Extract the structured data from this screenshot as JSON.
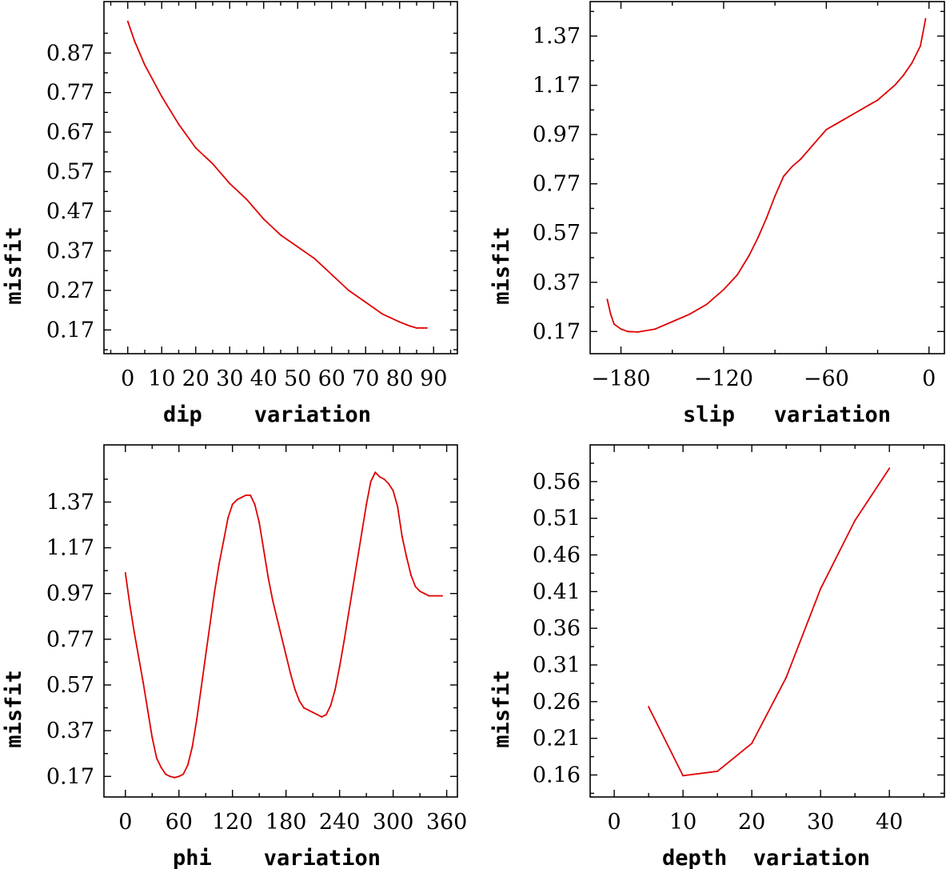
{
  "chart_data": [
    {
      "type": "line",
      "xlabel": "dip    variation",
      "ylabel": "misfit",
      "xlim": [
        -7,
        97
      ],
      "ylim": [
        0.11,
        1.0
      ],
      "xticks": [
        0,
        10,
        20,
        30,
        40,
        50,
        60,
        70,
        80,
        90
      ],
      "xtick_labels": [
        "0",
        "10",
        "20",
        "30",
        "40",
        "50",
        "60",
        "70",
        "80",
        "90"
      ],
      "yticks": [
        0.17,
        0.27,
        0.37,
        0.47,
        0.57,
        0.67,
        0.77,
        0.87
      ],
      "ytick_labels": [
        "0.17",
        "0.27",
        "0.37",
        "0.47",
        "0.57",
        "0.67",
        "0.77",
        "0.87"
      ],
      "series": [
        {
          "color": "#e00000",
          "x": [
            0,
            2,
            5,
            10,
            15,
            20,
            25,
            30,
            35,
            40,
            45,
            50,
            55,
            60,
            65,
            70,
            75,
            80,
            83,
            85,
            87,
            88
          ],
          "y": [
            0.95,
            0.9,
            0.84,
            0.76,
            0.69,
            0.63,
            0.59,
            0.54,
            0.5,
            0.45,
            0.41,
            0.38,
            0.35,
            0.31,
            0.27,
            0.24,
            0.21,
            0.19,
            0.18,
            0.175,
            0.175,
            0.175
          ]
        }
      ]
    },
    {
      "type": "line",
      "xlabel": "slip   variation",
      "ylabel": "misfit",
      "xlim": [
        -198,
        9
      ],
      "ylim": [
        0.08,
        1.51
      ],
      "xticks": [
        -180,
        -120,
        -60,
        0
      ],
      "xtick_labels": [
        "−180",
        "−120",
        "−60",
        "0"
      ],
      "yticks": [
        0.17,
        0.37,
        0.57,
        0.77,
        0.97,
        1.17,
        1.37
      ],
      "ytick_labels": [
        "0.17",
        "0.37",
        "0.57",
        "0.77",
        "0.97",
        "1.17",
        "1.37"
      ],
      "series": [
        {
          "color": "#e00000",
          "x": [
            -188,
            -186,
            -184,
            -180,
            -176,
            -170,
            -160,
            -150,
            -140,
            -130,
            -120,
            -112,
            -105,
            -100,
            -95,
            -90,
            -85,
            -80,
            -75,
            -70,
            -60,
            -55,
            -50,
            -45,
            -40,
            -35,
            -30,
            -25,
            -20,
            -15,
            -10,
            -5,
            -2
          ],
          "y": [
            0.3,
            0.24,
            0.2,
            0.18,
            0.17,
            0.168,
            0.18,
            0.21,
            0.24,
            0.28,
            0.34,
            0.4,
            0.48,
            0.55,
            0.63,
            0.72,
            0.8,
            0.84,
            0.87,
            0.91,
            0.99,
            1.01,
            1.03,
            1.05,
            1.07,
            1.09,
            1.11,
            1.14,
            1.17,
            1.21,
            1.26,
            1.33,
            1.44
          ]
        }
      ]
    },
    {
      "type": "line",
      "xlabel": "phi    variation",
      "ylabel": "misfit",
      "xlim": [
        -24,
        372
      ],
      "ylim": [
        0.08,
        1.62
      ],
      "xticks": [
        0,
        60,
        120,
        180,
        240,
        300,
        360
      ],
      "xtick_labels": [
        "0",
        "60",
        "120",
        "180",
        "240",
        "300",
        "360"
      ],
      "yticks": [
        0.17,
        0.37,
        0.57,
        0.77,
        0.97,
        1.17,
        1.37
      ],
      "ytick_labels": [
        "0.17",
        "0.37",
        "0.57",
        "0.77",
        "0.97",
        "1.17",
        "1.37"
      ],
      "series": [
        {
          "color": "#e00000",
          "x": [
            0,
            5,
            10,
            15,
            20,
            25,
            30,
            35,
            40,
            45,
            50,
            55,
            60,
            65,
            70,
            75,
            80,
            85,
            90,
            95,
            100,
            105,
            110,
            115,
            120,
            125,
            130,
            135,
            140,
            145,
            150,
            155,
            160,
            165,
            170,
            175,
            180,
            185,
            190,
            195,
            200,
            205,
            210,
            215,
            220,
            225,
            230,
            235,
            240,
            245,
            250,
            255,
            260,
            265,
            270,
            275,
            280,
            285,
            290,
            295,
            300,
            305,
            310,
            315,
            320,
            325,
            330,
            335,
            340,
            345,
            350,
            355
          ],
          "y": [
            1.06,
            0.92,
            0.8,
            0.69,
            0.58,
            0.46,
            0.34,
            0.25,
            0.21,
            0.18,
            0.17,
            0.165,
            0.17,
            0.18,
            0.22,
            0.3,
            0.42,
            0.56,
            0.7,
            0.84,
            0.98,
            1.1,
            1.2,
            1.3,
            1.36,
            1.38,
            1.39,
            1.4,
            1.4,
            1.36,
            1.28,
            1.16,
            1.04,
            0.94,
            0.86,
            0.78,
            0.7,
            0.62,
            0.55,
            0.5,
            0.47,
            0.46,
            0.45,
            0.44,
            0.43,
            0.44,
            0.48,
            0.55,
            0.65,
            0.76,
            0.88,
            1.0,
            1.12,
            1.24,
            1.36,
            1.46,
            1.5,
            1.48,
            1.47,
            1.45,
            1.42,
            1.35,
            1.22,
            1.13,
            1.05,
            1.0,
            0.98,
            0.97,
            0.96,
            0.96,
            0.96,
            0.96
          ]
        }
      ]
    },
    {
      "type": "line",
      "xlabel": "depth  variation",
      "ylabel": "misfit",
      "xlim": [
        -3.5,
        48
      ],
      "ylim": [
        0.13,
        0.61
      ],
      "xticks": [
        0,
        10,
        20,
        30,
        40
      ],
      "xtick_labels": [
        "0",
        "10",
        "20",
        "30",
        "40"
      ],
      "yticks": [
        0.16,
        0.21,
        0.26,
        0.31,
        0.36,
        0.41,
        0.46,
        0.51,
        0.56
      ],
      "ytick_labels": [
        "0.16",
        "0.21",
        "0.26",
        "0.31",
        "0.36",
        "0.41",
        "0.46",
        "0.51",
        "0.56"
      ],
      "series": [
        {
          "color": "#e00000",
          "x": [
            5,
            10,
            15,
            20,
            25,
            30,
            35,
            40
          ],
          "y": [
            0.253,
            0.159,
            0.165,
            0.203,
            0.293,
            0.414,
            0.507,
            0.578
          ]
        }
      ]
    }
  ]
}
